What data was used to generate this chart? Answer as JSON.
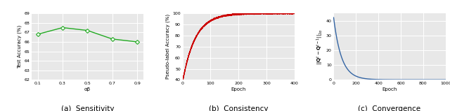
{
  "sensitivity": {
    "x": [
      0.1,
      0.3,
      0.5,
      0.7,
      0.9
    ],
    "y": [
      66.8,
      67.5,
      67.2,
      66.3,
      66.0
    ],
    "xlabel": "αβ",
    "ylabel": "Test Accuracy (%)",
    "ylim": [
      62,
      69
    ],
    "yticks": [
      62,
      63,
      64,
      65,
      66,
      67,
      68,
      69
    ],
    "color": "#22aa22",
    "marker": "D",
    "markersize": 3,
    "caption": "(a)  Sensitivity"
  },
  "consistency": {
    "xlabel": "Epoch",
    "ylabel": "Pseudo-label Accuracy (%)",
    "ylim": [
      40,
      100
    ],
    "yticks": [
      40,
      50,
      60,
      70,
      80,
      90,
      100
    ],
    "xticks": [
      0,
      100,
      200,
      300,
      400
    ],
    "xlim": [
      0,
      400
    ],
    "color": "#cc0000",
    "caption": "(b)  Consistency"
  },
  "convergence": {
    "xlabel": "Epoch",
    "ylim": [
      0,
      45
    ],
    "yticks": [
      0,
      10,
      20,
      30,
      40
    ],
    "xticks": [
      0,
      200,
      400,
      600,
      800,
      1000
    ],
    "xlim": [
      0,
      1000
    ],
    "color": "#3465a4",
    "caption": "(c)  Convergence"
  },
  "bg_color": "#e8e8e8",
  "label_fontsize": 5.0,
  "tick_fontsize": 4.5,
  "caption_fontsize": 7.5,
  "linewidth": 1.0
}
